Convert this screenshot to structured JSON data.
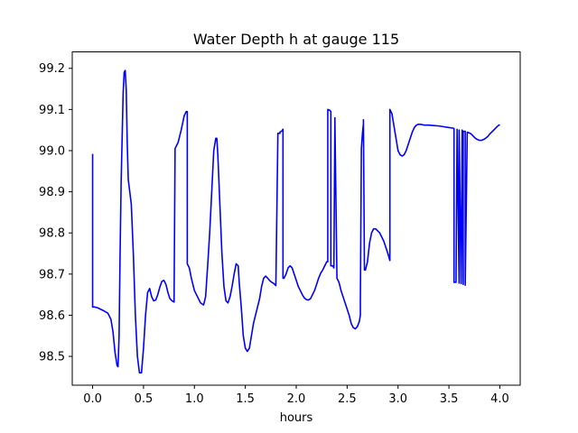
{
  "chart_data": {
    "type": "line",
    "title": "Water Depth h at gauge 115",
    "xlabel": "hours",
    "ylabel": "",
    "xlim": [
      -0.2,
      4.2
    ],
    "ylim": [
      98.43,
      99.24
    ],
    "xticks": [
      "0.0",
      "0.5",
      "1.0",
      "1.5",
      "2.0",
      "2.5",
      "3.0",
      "3.5",
      "4.0"
    ],
    "yticks": [
      "98.5",
      "98.6",
      "98.7",
      "98.8",
      "98.9",
      "99.0",
      "99.1",
      "99.2"
    ],
    "grid": false,
    "line_color": "#0000ff",
    "series": [
      {
        "x": [
          0.0,
          0.0,
          0.02,
          0.05,
          0.1,
          0.15,
          0.18,
          0.2,
          0.22,
          0.24,
          0.25,
          0.26,
          0.27,
          0.28,
          0.3,
          0.31,
          0.32,
          0.33,
          0.34,
          0.35,
          0.36,
          0.38,
          0.4,
          0.42,
          0.44,
          0.46,
          0.48,
          0.5,
          0.52,
          0.54,
          0.56,
          0.58,
          0.6,
          0.62,
          0.64,
          0.66,
          0.68,
          0.7,
          0.72,
          0.74,
          0.76,
          0.78,
          0.8,
          0.81,
          0.81,
          0.84,
          0.87,
          0.9,
          0.92,
          0.93,
          0.93,
          0.95,
          0.97,
          1.0,
          1.03,
          1.06,
          1.09,
          1.11,
          1.13,
          1.15,
          1.17,
          1.19,
          1.21,
          1.22,
          1.23,
          1.25,
          1.27,
          1.29,
          1.31,
          1.33,
          1.35,
          1.37,
          1.39,
          1.41,
          1.43,
          1.44,
          1.46,
          1.48,
          1.5,
          1.52,
          1.54,
          1.56,
          1.58,
          1.6,
          1.62,
          1.64,
          1.66,
          1.68,
          1.7,
          1.72,
          1.74,
          1.76,
          1.78,
          1.8,
          1.82,
          1.84,
          1.84,
          1.86,
          1.87,
          1.87,
          1.88,
          1.9,
          1.92,
          1.94,
          1.96,
          1.98,
          2.0,
          2.02,
          2.04,
          2.06,
          2.08,
          2.1,
          2.12,
          2.14,
          2.16,
          2.18,
          2.2,
          2.22,
          2.24,
          2.26,
          2.28,
          2.3,
          2.31,
          2.31,
          2.33,
          2.34,
          2.34,
          2.36,
          2.37,
          2.38,
          2.38,
          2.4,
          2.42,
          2.44,
          2.46,
          2.48,
          2.5,
          2.52,
          2.54,
          2.56,
          2.58,
          2.6,
          2.62,
          2.63,
          2.63,
          2.64,
          2.65,
          2.66,
          2.66,
          2.67,
          2.68,
          2.7,
          2.72,
          2.74,
          2.76,
          2.78,
          2.8,
          2.82,
          2.84,
          2.86,
          2.88,
          2.9,
          2.92,
          2.92,
          2.94,
          2.96,
          2.98,
          3.0,
          3.02,
          3.04,
          3.06,
          3.08,
          3.1,
          3.12,
          3.14,
          3.16,
          3.18,
          3.2,
          3.22,
          3.24,
          3.26,
          3.3,
          3.35,
          3.4,
          3.45,
          3.5,
          3.53,
          3.55,
          3.55,
          3.57,
          3.58,
          3.58,
          3.6,
          3.6,
          3.62,
          3.63,
          3.63,
          3.64,
          3.64,
          3.66,
          3.66,
          3.68,
          3.7,
          3.72,
          3.74,
          3.76,
          3.78,
          3.8,
          3.82,
          3.84,
          3.86,
          3.88,
          3.9,
          3.92,
          3.94,
          3.96,
          3.98,
          4.0
        ],
        "y": [
          98.992,
          98.62,
          98.62,
          98.618,
          98.612,
          98.605,
          98.59,
          98.56,
          98.51,
          98.478,
          98.475,
          98.55,
          98.75,
          98.92,
          99.14,
          99.19,
          99.195,
          99.15,
          99.02,
          98.93,
          98.91,
          98.87,
          98.75,
          98.6,
          98.5,
          98.46,
          98.46,
          98.52,
          98.6,
          98.655,
          98.665,
          98.645,
          98.635,
          98.637,
          98.65,
          98.668,
          98.682,
          98.685,
          98.675,
          98.655,
          98.64,
          98.635,
          98.632,
          99.005,
          99.005,
          99.02,
          99.05,
          99.085,
          99.095,
          99.095,
          98.725,
          98.715,
          98.69,
          98.66,
          98.645,
          98.63,
          98.625,
          98.645,
          98.72,
          98.8,
          98.9,
          99.0,
          99.03,
          99.03,
          98.99,
          98.87,
          98.75,
          98.67,
          98.635,
          98.63,
          98.645,
          98.67,
          98.7,
          98.725,
          98.72,
          98.68,
          98.62,
          98.55,
          98.52,
          98.512,
          98.52,
          98.55,
          98.58,
          98.6,
          98.62,
          98.64,
          98.67,
          98.69,
          98.695,
          98.69,
          98.684,
          98.68,
          98.677,
          98.672,
          99.042,
          99.042,
          99.045,
          99.048,
          99.052,
          98.69,
          98.69,
          98.7,
          98.715,
          98.72,
          98.715,
          98.7,
          98.685,
          98.67,
          98.66,
          98.65,
          98.642,
          98.638,
          98.637,
          98.64,
          98.65,
          98.66,
          98.675,
          98.69,
          98.702,
          98.71,
          98.72,
          98.73,
          98.73,
          99.1,
          99.098,
          99.095,
          98.72,
          98.72,
          98.715,
          99.08,
          99.07,
          98.69,
          98.68,
          98.66,
          98.645,
          98.63,
          98.615,
          98.6,
          98.58,
          98.57,
          98.567,
          98.572,
          98.585,
          98.6,
          98.63,
          99.005,
          99.04,
          99.065,
          99.075,
          98.71,
          98.71,
          98.73,
          98.775,
          98.8,
          98.81,
          98.81,
          98.805,
          98.8,
          98.79,
          98.78,
          98.765,
          98.75,
          98.733,
          99.1,
          99.09,
          99.06,
          99.03,
          99.0,
          98.99,
          98.987,
          98.99,
          99.0,
          99.015,
          99.03,
          99.045,
          99.056,
          99.062,
          99.064,
          99.064,
          99.063,
          99.062,
          99.062,
          99.061,
          99.06,
          99.058,
          99.056,
          99.055,
          99.054,
          98.68,
          98.68,
          99.052,
          99.05,
          98.678,
          99.05,
          98.677,
          99.05,
          99.048,
          98.675,
          99.047,
          99.047,
          98.673,
          99.045,
          99.043,
          99.04,
          99.035,
          99.03,
          99.027,
          99.025,
          99.025,
          99.027,
          99.03,
          99.034,
          99.04,
          99.045,
          99.05,
          99.055,
          99.06,
          99.063
        ]
      }
    ]
  }
}
